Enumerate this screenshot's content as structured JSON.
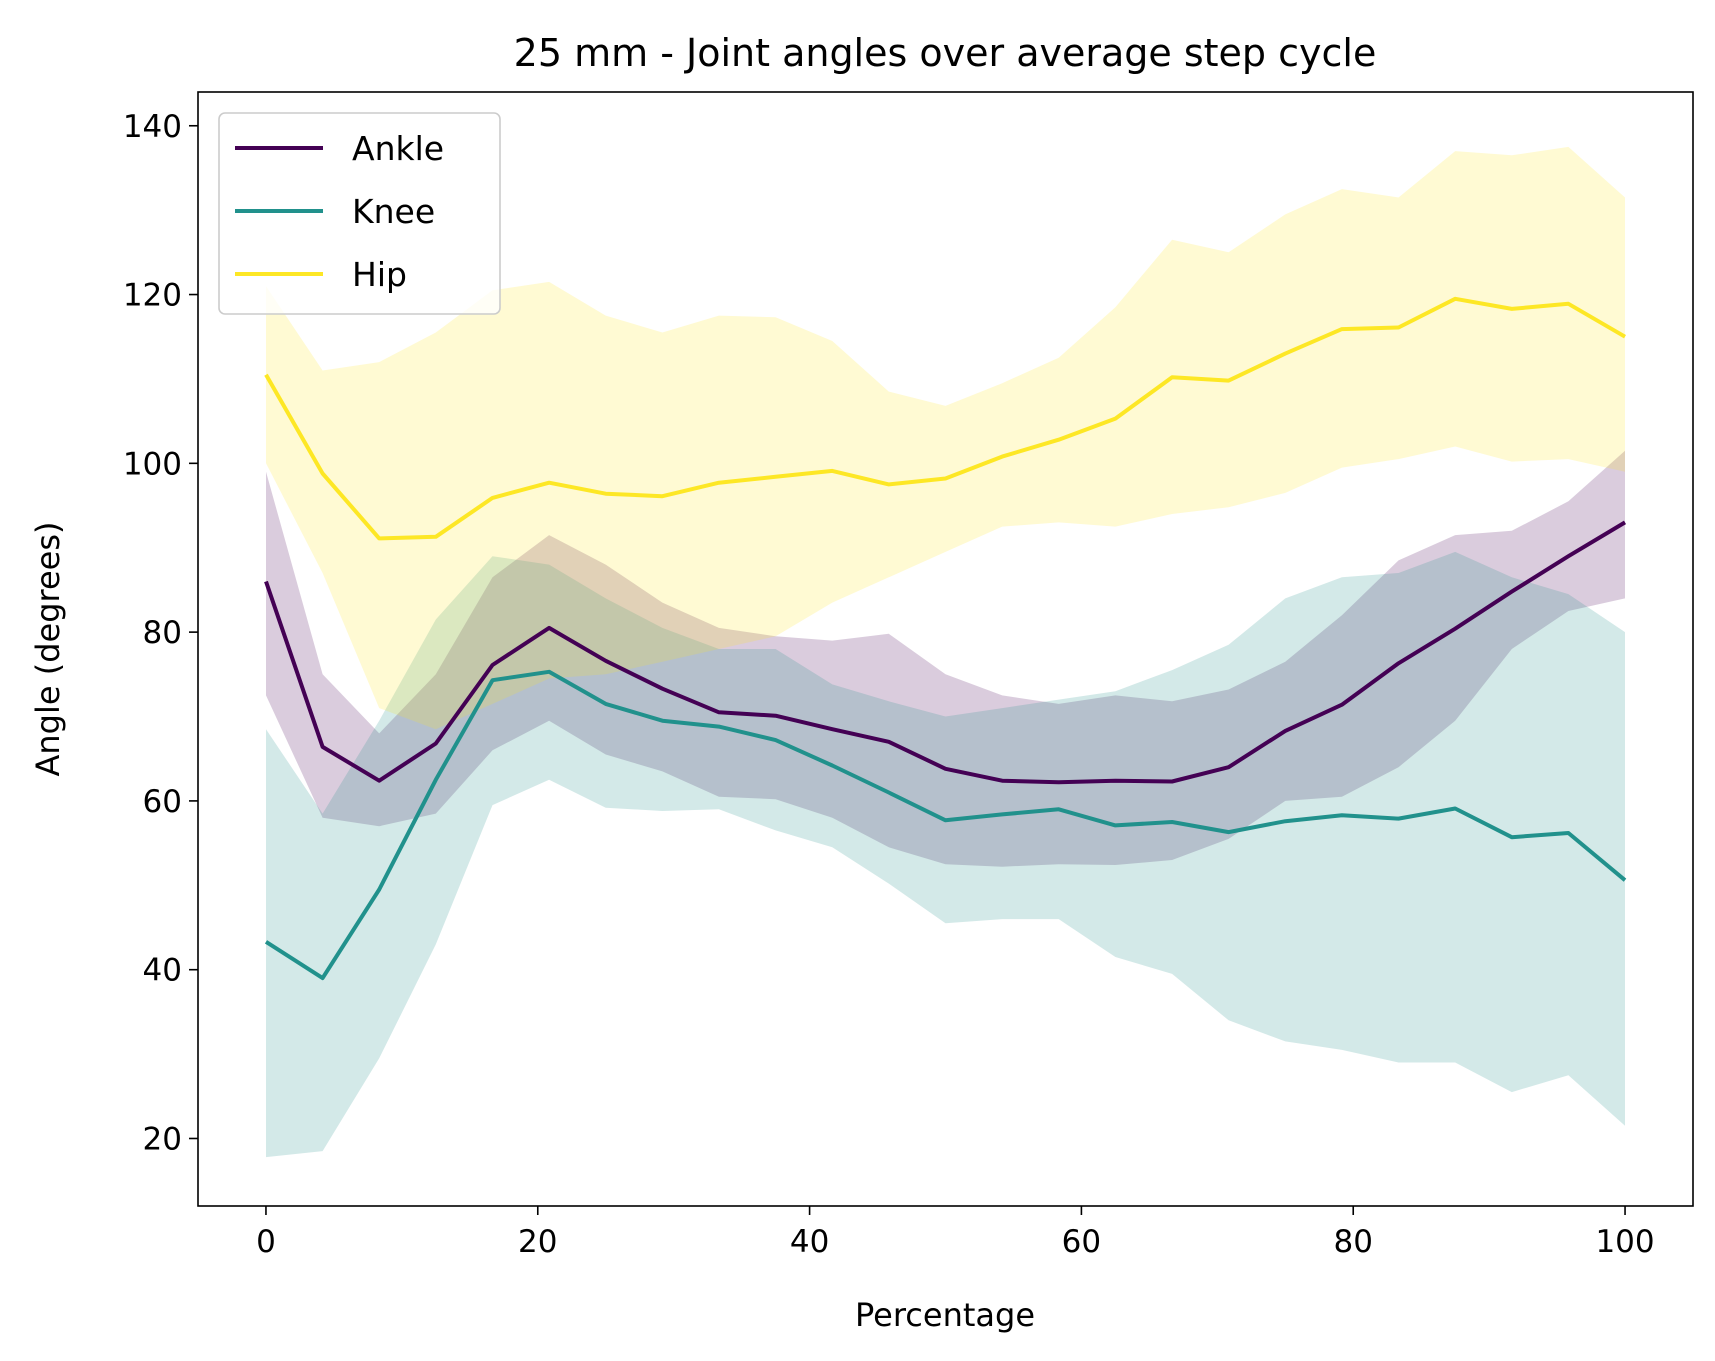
{
  "chart_data": {
    "type": "line",
    "title": "25 mm - Joint angles over average step cycle",
    "xlabel": "Percentage",
    "ylabel": "Angle (degrees)",
    "xlim": [
      -5,
      105
    ],
    "ylim": [
      12,
      144
    ],
    "xticks": [
      0,
      20,
      40,
      60,
      80,
      100
    ],
    "yticks": [
      20,
      40,
      60,
      80,
      100,
      120,
      140
    ],
    "grid": false,
    "legend_position": "top-left",
    "x": [
      0,
      4.17,
      8.33,
      12.5,
      16.67,
      20.83,
      25,
      29.17,
      33.33,
      37.5,
      41.67,
      45.83,
      50,
      54.17,
      58.33,
      62.5,
      66.67,
      70.83,
      75,
      79.17,
      83.33,
      87.5,
      91.67,
      95.83,
      100
    ],
    "series": [
      {
        "name": "Ankle",
        "color": "#440154",
        "values": [
          86,
          66.4,
          62.4,
          66.8,
          76.1,
          80.5,
          76.6,
          73.3,
          70.5,
          70.1,
          68.5,
          67,
          63.8,
          62.4,
          62.2,
          62.4,
          62.3,
          64,
          68.3,
          71.4,
          76.3,
          80.4,
          84.8,
          89,
          93
        ],
        "lower": [
          72.5,
          58,
          57,
          58.5,
          66,
          69.5,
          65.5,
          63.5,
          60.5,
          60.2,
          58,
          54.5,
          52.5,
          52.2,
          52.5,
          52.4,
          53,
          55.5,
          60,
          60.5,
          64,
          69.5,
          78,
          82.5,
          84
        ],
        "upper": [
          99,
          75,
          68,
          75,
          86.5,
          91.5,
          88,
          83.5,
          80.5,
          79.5,
          79,
          79.8,
          75,
          72.5,
          71.5,
          72.5,
          71.8,
          73.2,
          76.5,
          82,
          88.5,
          91.5,
          92,
          95.5,
          101.5
        ]
      },
      {
        "name": "Knee",
        "color": "#21918c",
        "values": [
          43.3,
          39,
          49.5,
          62.5,
          74.3,
          75.3,
          71.5,
          69.5,
          68.8,
          67.2,
          64.2,
          61,
          57.7,
          58.4,
          59,
          57.1,
          57.5,
          56.3,
          57.6,
          58.3,
          57.9,
          59.1,
          55.7,
          56.2,
          50.6
        ],
        "lower": [
          17.8,
          18.5,
          29.5,
          43,
          59.5,
          62.5,
          59.2,
          58.8,
          59,
          56.5,
          54.5,
          50.2,
          45.5,
          46,
          46,
          41.5,
          39.5,
          34,
          31.5,
          30.5,
          29,
          29,
          25.5,
          27.5,
          21.5
        ],
        "upper": [
          68.5,
          58.5,
          69.5,
          81.5,
          89,
          88,
          84,
          80.5,
          78,
          78,
          73.8,
          71.8,
          70,
          71,
          72,
          73,
          75.5,
          78.5,
          84,
          86.5,
          87,
          89.5,
          86.5,
          84.5,
          80
        ]
      },
      {
        "name": "Hip",
        "color": "#fde725",
        "values": [
          110.5,
          98.8,
          91.1,
          91.3,
          95.9,
          97.7,
          96.4,
          96.1,
          97.7,
          98.4,
          99.1,
          97.5,
          98.2,
          100.8,
          102.8,
          105.3,
          110.2,
          109.8,
          113,
          115.9,
          116.1,
          119.5,
          118.3,
          118.9,
          115
        ],
        "lower": [
          100,
          87,
          71,
          68.5,
          71.5,
          74.5,
          75,
          76.5,
          78,
          79.5,
          83.5,
          86.5,
          89.5,
          92.5,
          93,
          92.5,
          94,
          94.8,
          96.5,
          99.5,
          100.5,
          102,
          100.2,
          100.5,
          99
        ],
        "upper": [
          121,
          111,
          112,
          115.5,
          120.5,
          121.5,
          117.5,
          115.5,
          117.5,
          117.3,
          114.5,
          108.5,
          106.8,
          109.5,
          112.5,
          118.5,
          126.5,
          125,
          129.5,
          132.5,
          131.5,
          137,
          136.5,
          137.5,
          131.5
        ]
      }
    ]
  }
}
